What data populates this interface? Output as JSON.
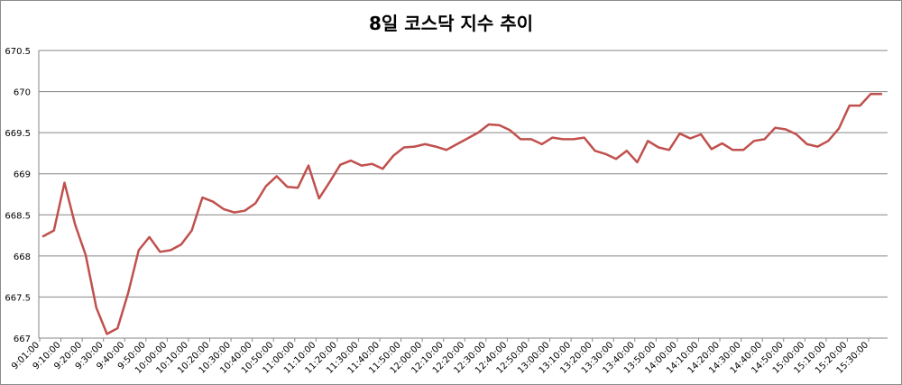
{
  "chart_data": {
    "type": "line",
    "title": "8일 코스닥 지수 추이",
    "ylim": [
      667,
      670.5
    ],
    "yticks": [
      667,
      667.5,
      668,
      668.5,
      669,
      669.5,
      670,
      670.5
    ],
    "ytick_labels": [
      "667",
      "667.5",
      "668",
      "668.5",
      "669",
      "669.5",
      "670",
      "670.5"
    ],
    "xtick_labels": [
      "9:01:00",
      "9:10:00",
      "9:20:00",
      "9:30:00",
      "9:40:00",
      "9:50:00",
      "10:00:00",
      "10:10:00",
      "10:20:00",
      "10:30:00",
      "10:40:00",
      "10:50:00",
      "11:00:00",
      "11:10:00",
      "11:20:00",
      "11:30:00",
      "11:40:00",
      "11:50:00",
      "12:00:00",
      "12:10:00",
      "12:20:00",
      "12:30:00",
      "12:40:00",
      "12:50:00",
      "13:00:00",
      "13:10:00",
      "13:20:00",
      "13:30:00",
      "13:40:00",
      "13:50:00",
      "14:00:00",
      "14:10:00",
      "14:20:00",
      "14:30:00",
      "14:40:00",
      "14:50:00",
      "15:00:00",
      "15:10:00",
      "15:20:00",
      "15:30:00"
    ],
    "grid": true,
    "legend": "none",
    "line_color": "#c0504d",
    "series": [
      {
        "values": [
          668.24,
          668.31,
          668.89,
          668.38,
          668.01,
          667.37,
          667.05,
          667.12,
          667.55,
          668.07,
          668.23,
          668.05,
          668.07,
          668.14,
          668.31,
          668.71,
          668.66,
          668.57,
          668.53,
          668.55,
          668.64,
          668.85,
          668.97,
          668.84,
          668.83,
          669.1,
          668.7,
          668.9,
          669.11,
          669.16,
          669.1,
          669.12,
          669.06,
          669.22,
          669.32,
          669.33,
          669.36,
          669.33,
          669.29,
          669.36,
          669.43,
          669.5,
          669.6,
          669.59,
          669.53,
          669.42,
          669.42,
          669.36,
          669.44,
          669.42,
          669.42,
          669.44,
          669.28,
          669.24,
          669.18,
          669.28,
          669.14,
          669.4,
          669.32,
          669.29,
          669.49,
          669.43,
          669.48,
          669.3,
          669.37,
          669.29,
          669.29,
          669.4,
          669.42,
          669.56,
          669.54,
          669.48,
          669.36,
          669.33,
          669.4,
          669.55,
          669.83,
          669.83,
          669.97,
          669.97
        ]
      }
    ]
  }
}
